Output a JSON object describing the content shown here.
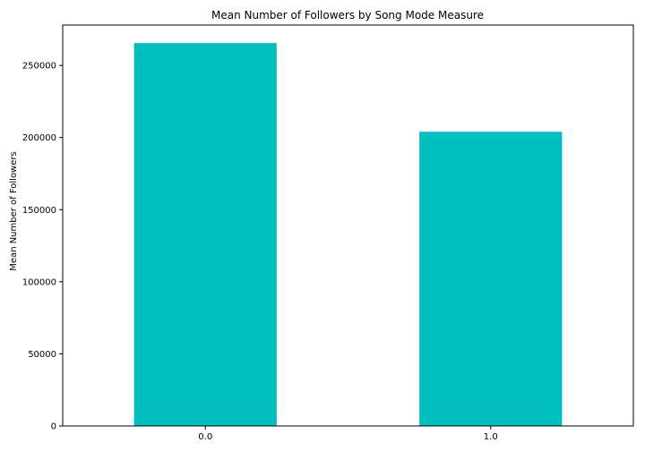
{
  "chart_data": {
    "type": "bar",
    "title": "Mean Number of Followers by Song Mode Measure",
    "xlabel": "",
    "ylabel": "Mean Number of Followers",
    "categories": [
      "0.0",
      "1.0"
    ],
    "values": [
      265500,
      204000
    ],
    "ylim": [
      0,
      278000
    ],
    "yticks": [
      0,
      50000,
      100000,
      150000,
      200000,
      250000
    ],
    "bar_color": "#00bfbf",
    "grid": false,
    "legend": "none"
  }
}
